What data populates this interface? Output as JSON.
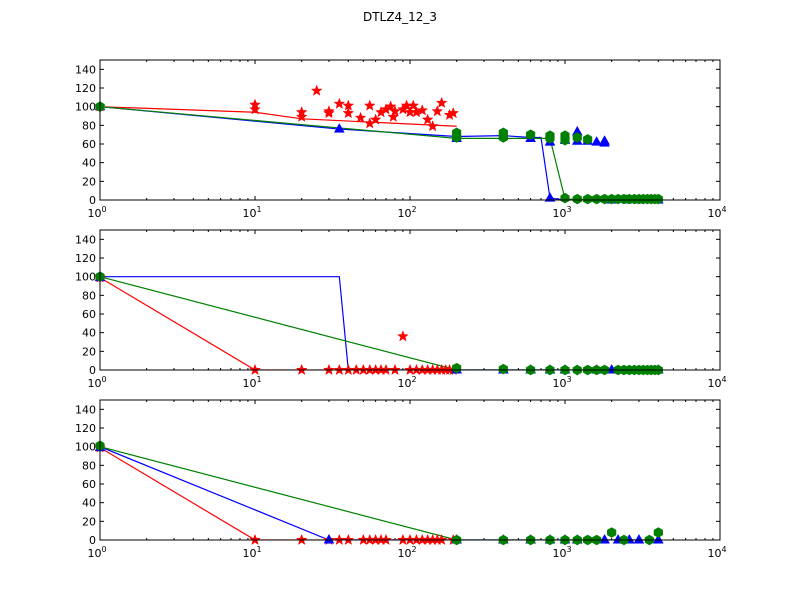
{
  "figure": {
    "title": "DTLZ4_12_3"
  },
  "colors": {
    "red": "#ff0000",
    "blue": "#0000ff",
    "green": "#008000"
  },
  "chart_data": [
    {
      "type": "scatter",
      "xscale": "log",
      "xlim": [
        1,
        10000
      ],
      "ylim": [
        0,
        150
      ],
      "yticks": [
        0,
        20,
        40,
        60,
        80,
        100,
        120,
        140
      ],
      "xticks": [
        {
          "value": 1,
          "base": "10",
          "exp": "0"
        },
        {
          "value": 10,
          "base": "10",
          "exp": "1"
        },
        {
          "value": 100,
          "base": "10",
          "exp": "2"
        },
        {
          "value": 1000,
          "base": "10",
          "exp": "3"
        },
        {
          "value": 10000,
          "base": "10",
          "exp": "4"
        }
      ],
      "series": [
        {
          "color": "red",
          "marker": "star",
          "line": [
            [
              1,
              100
            ],
            [
              10,
              94
            ],
            [
              20,
              87
            ],
            [
              200,
              79
            ]
          ],
          "points": [
            [
              1,
              100
            ],
            [
              10,
              102
            ],
            [
              10,
              97
            ],
            [
              20,
              94
            ],
            [
              20,
              89
            ],
            [
              25,
              117
            ],
            [
              30,
              95
            ],
            [
              30,
              93
            ],
            [
              35,
              103
            ],
            [
              40,
              101
            ],
            [
              40,
              93
            ],
            [
              48,
              88
            ],
            [
              55,
              101
            ],
            [
              55,
              82
            ],
            [
              60,
              86
            ],
            [
              65,
              94
            ],
            [
              70,
              97
            ],
            [
              75,
              100
            ],
            [
              78,
              89
            ],
            [
              80,
              95
            ],
            [
              90,
              97
            ],
            [
              95,
              101
            ],
            [
              100,
              94
            ],
            [
              105,
              101
            ],
            [
              110,
              94
            ],
            [
              120,
              96
            ],
            [
              130,
              86
            ],
            [
              140,
              79
            ],
            [
              150,
              95
            ],
            [
              160,
              104
            ],
            [
              180,
              91
            ],
            [
              190,
              93
            ]
          ]
        },
        {
          "color": "blue",
          "marker": "triangle",
          "line": [
            [
              1,
              100
            ],
            [
              35,
              76
            ],
            [
              200,
              68
            ],
            [
              400,
              69
            ],
            [
              600,
              67
            ],
            [
              700,
              67
            ],
            [
              800,
              2
            ],
            [
              1000,
              0
            ],
            [
              4000,
              0
            ]
          ],
          "points": [
            [
              1,
              100
            ],
            [
              35,
              76
            ],
            [
              200,
              66
            ],
            [
              400,
              69
            ],
            [
              600,
              66
            ],
            [
              800,
              62
            ],
            [
              800,
              2
            ],
            [
              1000,
              64
            ],
            [
              1200,
              73
            ],
            [
              1200,
              63
            ],
            [
              1400,
              63
            ],
            [
              1600,
              62
            ],
            [
              1800,
              63
            ],
            [
              1800,
              61
            ],
            [
              2000,
              0
            ],
            [
              2500,
              0
            ],
            [
              3000,
              0
            ],
            [
              4000,
              0
            ]
          ]
        },
        {
          "color": "green",
          "marker": "hexagon",
          "line": [
            [
              1,
              100
            ],
            [
              200,
              66
            ],
            [
              400,
              66
            ],
            [
              600,
              66
            ],
            [
              800,
              66
            ],
            [
              1000,
              1
            ],
            [
              4000,
              0
            ]
          ],
          "points": [
            [
              1,
              100
            ],
            [
              200,
              72
            ],
            [
              200,
              67
            ],
            [
              400,
              72
            ],
            [
              400,
              67
            ],
            [
              600,
              70
            ],
            [
              800,
              69
            ],
            [
              800,
              66
            ],
            [
              1000,
              69
            ],
            [
              1000,
              64
            ],
            [
              1000,
              2
            ],
            [
              1200,
              67
            ],
            [
              1200,
              1
            ],
            [
              1400,
              65
            ],
            [
              1400,
              1
            ],
            [
              1600,
              1
            ],
            [
              1800,
              1
            ],
            [
              2000,
              1
            ],
            [
              2200,
              1
            ],
            [
              2400,
              1
            ],
            [
              2600,
              1
            ],
            [
              2800,
              1
            ],
            [
              3000,
              1
            ],
            [
              3200,
              1
            ],
            [
              3400,
              1
            ],
            [
              3600,
              1
            ],
            [
              3800,
              1
            ],
            [
              4000,
              1
            ]
          ]
        }
      ]
    },
    {
      "type": "scatter",
      "xscale": "log",
      "xlim": [
        1,
        10000
      ],
      "ylim": [
        0,
        150
      ],
      "yticks": [
        0,
        20,
        40,
        60,
        80,
        100,
        120,
        140
      ],
      "xticks": [
        {
          "value": 1,
          "base": "10",
          "exp": "0"
        },
        {
          "value": 10,
          "base": "10",
          "exp": "1"
        },
        {
          "value": 100,
          "base": "10",
          "exp": "2"
        },
        {
          "value": 1000,
          "base": "10",
          "exp": "3"
        },
        {
          "value": 10000,
          "base": "10",
          "exp": "4"
        }
      ],
      "series": [
        {
          "color": "red",
          "marker": "star",
          "line": [
            [
              1,
              99
            ],
            [
              10,
              0
            ],
            [
              200,
              0
            ]
          ],
          "points": [
            [
              1,
              99
            ],
            [
              10,
              0
            ],
            [
              20,
              0
            ],
            [
              30,
              0
            ],
            [
              35,
              0
            ],
            [
              40,
              0
            ],
            [
              45,
              0
            ],
            [
              50,
              0
            ],
            [
              55,
              0
            ],
            [
              60,
              0
            ],
            [
              65,
              0
            ],
            [
              70,
              0
            ],
            [
              80,
              0
            ],
            [
              90,
              36
            ],
            [
              100,
              0
            ],
            [
              110,
              0
            ],
            [
              120,
              0
            ],
            [
              130,
              0
            ],
            [
              140,
              0
            ],
            [
              150,
              0
            ],
            [
              160,
              0
            ],
            [
              170,
              0
            ],
            [
              180,
              0
            ],
            [
              190,
              0
            ]
          ]
        },
        {
          "color": "blue",
          "marker": "triangle",
          "line": [
            [
              1,
              100
            ],
            [
              35,
              100
            ],
            [
              40,
              0
            ],
            [
              4000,
              0
            ]
          ],
          "points": [
            [
              1,
              99
            ],
            [
              200,
              0
            ],
            [
              400,
              0
            ],
            [
              600,
              0
            ],
            [
              800,
              0
            ],
            [
              1000,
              0
            ],
            [
              1600,
              0
            ],
            [
              2000,
              0
            ],
            [
              4000,
              0
            ]
          ]
        },
        {
          "color": "green",
          "marker": "hexagon",
          "line": [
            [
              1,
              100
            ],
            [
              200,
              0
            ],
            [
              4000,
              0
            ]
          ],
          "points": [
            [
              1,
              100
            ],
            [
              200,
              2
            ],
            [
              400,
              1
            ],
            [
              600,
              0
            ],
            [
              800,
              0
            ],
            [
              1000,
              0
            ],
            [
              1200,
              0
            ],
            [
              1400,
              0
            ],
            [
              1600,
              0
            ],
            [
              1800,
              0
            ],
            [
              2200,
              0
            ],
            [
              2400,
              0
            ],
            [
              2600,
              0
            ],
            [
              2800,
              0
            ],
            [
              3000,
              0
            ],
            [
              3200,
              0
            ],
            [
              3400,
              0
            ],
            [
              3600,
              0
            ],
            [
              3800,
              0
            ],
            [
              4000,
              0
            ]
          ]
        }
      ]
    },
    {
      "type": "scatter",
      "xscale": "log",
      "xlim": [
        1,
        10000
      ],
      "ylim": [
        0,
        150
      ],
      "yticks": [
        0,
        20,
        40,
        60,
        80,
        100,
        120,
        140
      ],
      "xticks": [
        {
          "value": 1,
          "base": "10",
          "exp": "0"
        },
        {
          "value": 10,
          "base": "10",
          "exp": "1"
        },
        {
          "value": 100,
          "base": "10",
          "exp": "2"
        },
        {
          "value": 1000,
          "base": "10",
          "exp": "3"
        },
        {
          "value": 10000,
          "base": "10",
          "exp": "4"
        }
      ],
      "series": [
        {
          "color": "red",
          "marker": "star",
          "line": [
            [
              1,
              99
            ],
            [
              10,
              0
            ],
            [
              200,
              0
            ]
          ],
          "points": [
            [
              1,
              99
            ],
            [
              10,
              0
            ],
            [
              20,
              0
            ],
            [
              30,
              0
            ],
            [
              35,
              0
            ],
            [
              40,
              0
            ],
            [
              50,
              0
            ],
            [
              55,
              0
            ],
            [
              60,
              0
            ],
            [
              65,
              0
            ],
            [
              70,
              0
            ],
            [
              90,
              0
            ],
            [
              100,
              0
            ],
            [
              110,
              0
            ],
            [
              120,
              0
            ],
            [
              130,
              0
            ],
            [
              140,
              0
            ],
            [
              150,
              0
            ],
            [
              160,
              0
            ],
            [
              190,
              0
            ]
          ]
        },
        {
          "color": "blue",
          "marker": "triangle",
          "line": [
            [
              1,
              100
            ],
            [
              30,
              0
            ],
            [
              4000,
              0
            ]
          ],
          "points": [
            [
              1,
              99
            ],
            [
              30,
              0
            ],
            [
              200,
              0
            ],
            [
              400,
              0
            ],
            [
              600,
              0
            ],
            [
              800,
              0
            ],
            [
              1000,
              0
            ],
            [
              1200,
              0
            ],
            [
              1800,
              0
            ],
            [
              2200,
              0
            ],
            [
              2600,
              0
            ],
            [
              3000,
              0
            ],
            [
              4000,
              0
            ]
          ]
        },
        {
          "color": "green",
          "marker": "hexagon",
          "line": [
            [
              1,
              100
            ],
            [
              200,
              0
            ],
            [
              4000,
              0
            ]
          ],
          "points": [
            [
              1,
              101
            ],
            [
              200,
              0
            ],
            [
              400,
              0
            ],
            [
              600,
              0
            ],
            [
              800,
              0
            ],
            [
              1000,
              0
            ],
            [
              1200,
              0
            ],
            [
              1400,
              0
            ],
            [
              1600,
              0
            ],
            [
              2000,
              8
            ],
            [
              2400,
              0
            ],
            [
              3500,
              0
            ],
            [
              4000,
              8
            ]
          ]
        }
      ]
    }
  ]
}
